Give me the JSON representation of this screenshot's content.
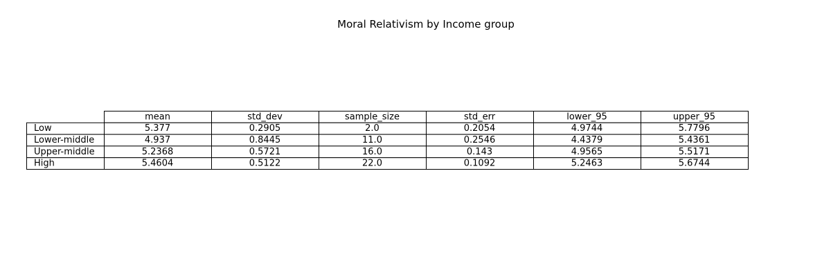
{
  "chart_data": {
    "type": "table",
    "title": "Moral Relativism by Income group",
    "columns": [
      "mean",
      "std_dev",
      "sample_size",
      "std_err",
      "lower_95",
      "upper_95"
    ],
    "rows": [
      {
        "label": "Low",
        "values": [
          "5.377",
          "0.2905",
          "2.0",
          "0.2054",
          "4.9744",
          "5.7796"
        ]
      },
      {
        "label": "Lower-middle",
        "values": [
          "4.937",
          "0.8445",
          "11.0",
          "0.2546",
          "4.4379",
          "5.4361"
        ]
      },
      {
        "label": "Upper-middle",
        "values": [
          "5.2368",
          "0.5721",
          "16.0",
          "0.143",
          "4.9565",
          "5.5171"
        ]
      },
      {
        "label": "High",
        "values": [
          "5.4604",
          "0.5122",
          "22.0",
          "0.1092",
          "5.2463",
          "5.6744"
        ]
      }
    ]
  }
}
